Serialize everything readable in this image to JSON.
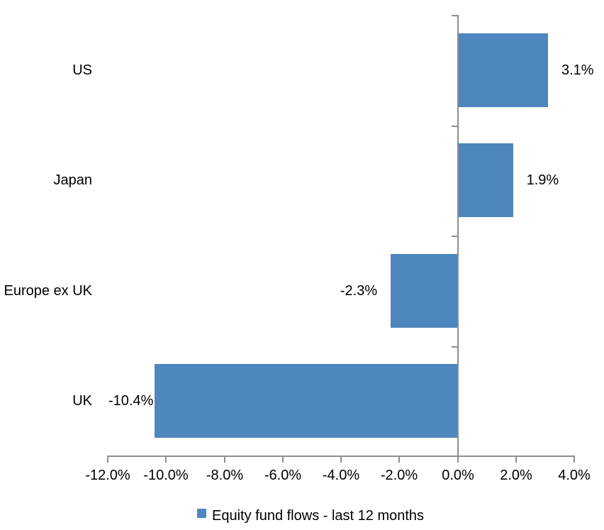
{
  "chart_data": {
    "type": "bar",
    "orientation": "horizontal",
    "title": "",
    "categories": [
      "US",
      "Japan",
      "Europe ex UK",
      "UK"
    ],
    "series": [
      {
        "name": "Equity fund flows - last 12 months",
        "values": [
          3.1,
          1.9,
          -2.3,
          -10.4
        ]
      }
    ],
    "data_labels": [
      "3.1%",
      "1.9%",
      "-2.3%",
      "-10.4%"
    ],
    "x_tick_values": [
      -12,
      -10,
      -8,
      -6,
      -4,
      -2,
      0,
      2,
      4
    ],
    "x_tick_labels": [
      "-12.0%",
      "-10.0%",
      "-8.0%",
      "-6.0%",
      "-4.0%",
      "-2.0%",
      "0.0%",
      "2.0%",
      "4.0%"
    ],
    "xlim": [
      -12,
      4
    ],
    "grid": false,
    "legend_position": "bottom",
    "bar_color": "#4E87BE",
    "axis_color": "#8E8E8E",
    "text_color": "#000000"
  },
  "legend": {
    "label": "Equity fund flows - last 12 months"
  }
}
